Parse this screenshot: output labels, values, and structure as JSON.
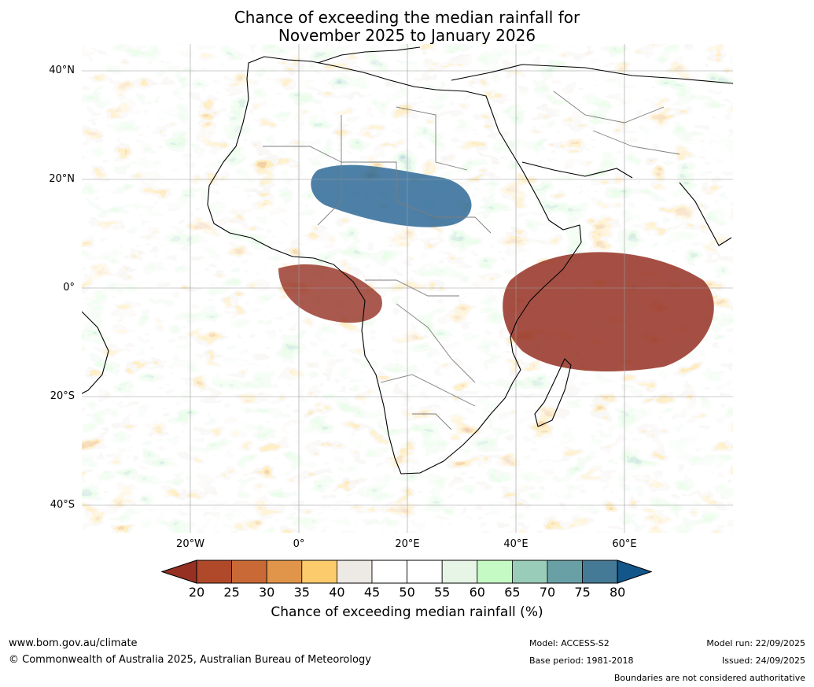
{
  "title": {
    "line1": "Chance of exceeding the median rainfall for",
    "line2": "November 2025 to January 2026"
  },
  "map": {
    "region": "Africa",
    "lat_labels": [
      "40°N",
      "20°N",
      "0°",
      "20°S",
      "40°S"
    ],
    "lon_labels": [
      "20°W",
      "0°",
      "20°E",
      "40°E",
      "60°E"
    ],
    "lat_range": [
      -45,
      45
    ],
    "lon_range": [
      -40,
      80
    ]
  },
  "colorbar": {
    "ticks": [
      "20",
      "25",
      "30",
      "35",
      "40",
      "45",
      "50",
      "55",
      "60",
      "65",
      "70",
      "75",
      "80"
    ],
    "colors": [
      "#953023",
      "#b0492a",
      "#c96936",
      "#e0954a",
      "#fccb6c",
      "#ede9e4",
      "#ffffff",
      "#ffffff",
      "#e6f5e6",
      "#c5fac5",
      "#99cdb9",
      "#68a0a6",
      "#457a96",
      "#13568a"
    ],
    "label": "Chance of exceeding median rainfall (%)"
  },
  "footer": {
    "website": "www.bom.gov.au/climate",
    "copyright": "© Commonwealth of Australia 2025, Australian Bureau of Meteorology",
    "model": "Model: ACCESS-S2",
    "base_period": "Base period: 1981-2018",
    "model_run": "Model run: 22/09/2025",
    "issued": "Issued: 24/09/2025",
    "disclaimer": "Boundaries are not considered authoritative"
  }
}
